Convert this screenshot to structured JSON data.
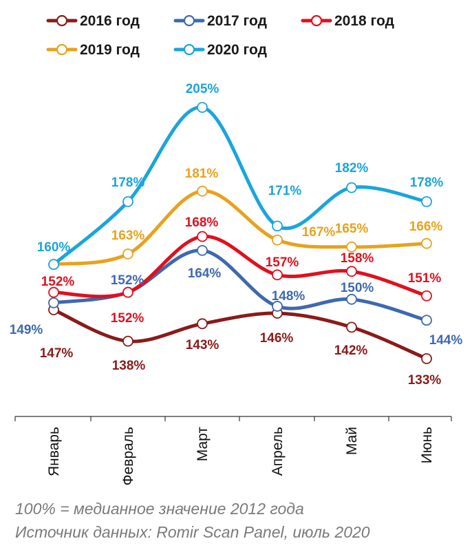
{
  "chart_data": {
    "type": "line",
    "title": "",
    "xlabel": "",
    "ylabel": "",
    "categories": [
      "Январь",
      "Февраль",
      "Март",
      "Апрель",
      "Май",
      "Июнь"
    ],
    "ylim": [
      125,
      210
    ],
    "grid": false,
    "legend_position": "top",
    "series": [
      {
        "name": "2016 год",
        "color": "#8b1a1a",
        "values": [
          147,
          138,
          143,
          146,
          142,
          133
        ],
        "labels": [
          "147%",
          "138%",
          "143%",
          "146%",
          "142%",
          "133%"
        ]
      },
      {
        "name": "2017 год",
        "color": "#3e69b0",
        "values": [
          149,
          152,
          164,
          148,
          150,
          144
        ],
        "labels": [
          "149%",
          "152%",
          "164%",
          "148%",
          "150%",
          "144%"
        ]
      },
      {
        "name": "2018 год",
        "color": "#e0101e",
        "values": [
          152,
          152,
          168,
          157,
          158,
          151
        ],
        "labels": [
          "152%",
          "152%",
          "168%",
          "157%",
          "158%",
          "151%"
        ]
      },
      {
        "name": "2019 год",
        "color": "#e8a21c",
        "values": [
          160,
          163,
          181,
          167,
          165,
          166
        ],
        "labels": [
          "",
          "163%",
          "181%",
          "167%",
          "165%",
          "166%"
        ]
      },
      {
        "name": "2020 год",
        "color": "#1aa5dc",
        "values": [
          160,
          178,
          205,
          171,
          182,
          178
        ],
        "labels": [
          "160%",
          "178%",
          "205%",
          "171%",
          "182%",
          "178%"
        ]
      }
    ]
  },
  "footnotes": {
    "note": "100% = медианное значение 2012 года",
    "source": "Источник данных: Romir Scan Panel, июль 2020"
  }
}
